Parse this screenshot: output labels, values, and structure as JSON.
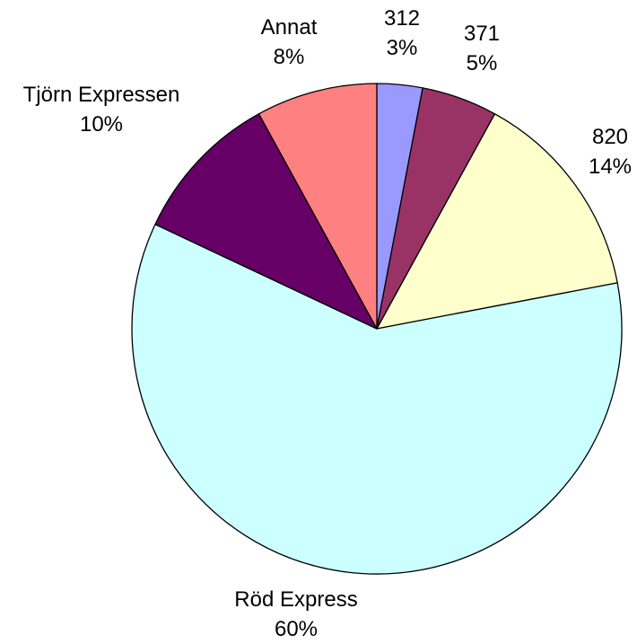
{
  "chart_data": {
    "type": "pie",
    "slices": [
      {
        "label": "312",
        "percent_label": "3%",
        "value": 3,
        "color": "#9999ff"
      },
      {
        "label": "371",
        "percent_label": "5%",
        "value": 5,
        "color": "#993366"
      },
      {
        "label": "820",
        "percent_label": "14%",
        "value": 14,
        "color": "#ffffcc"
      },
      {
        "label": "Röd Express",
        "percent_label": "60%",
        "value": 60,
        "color": "#ccffff"
      },
      {
        "label": "Tjörn Expressen",
        "percent_label": "10%",
        "value": 10,
        "color": "#660066"
      },
      {
        "label": "Annat",
        "percent_label": "8%",
        "value": 8,
        "color": "#ff8080"
      }
    ],
    "start_angle": "12 o'clock",
    "direction": "clockwise",
    "legend": "none"
  }
}
